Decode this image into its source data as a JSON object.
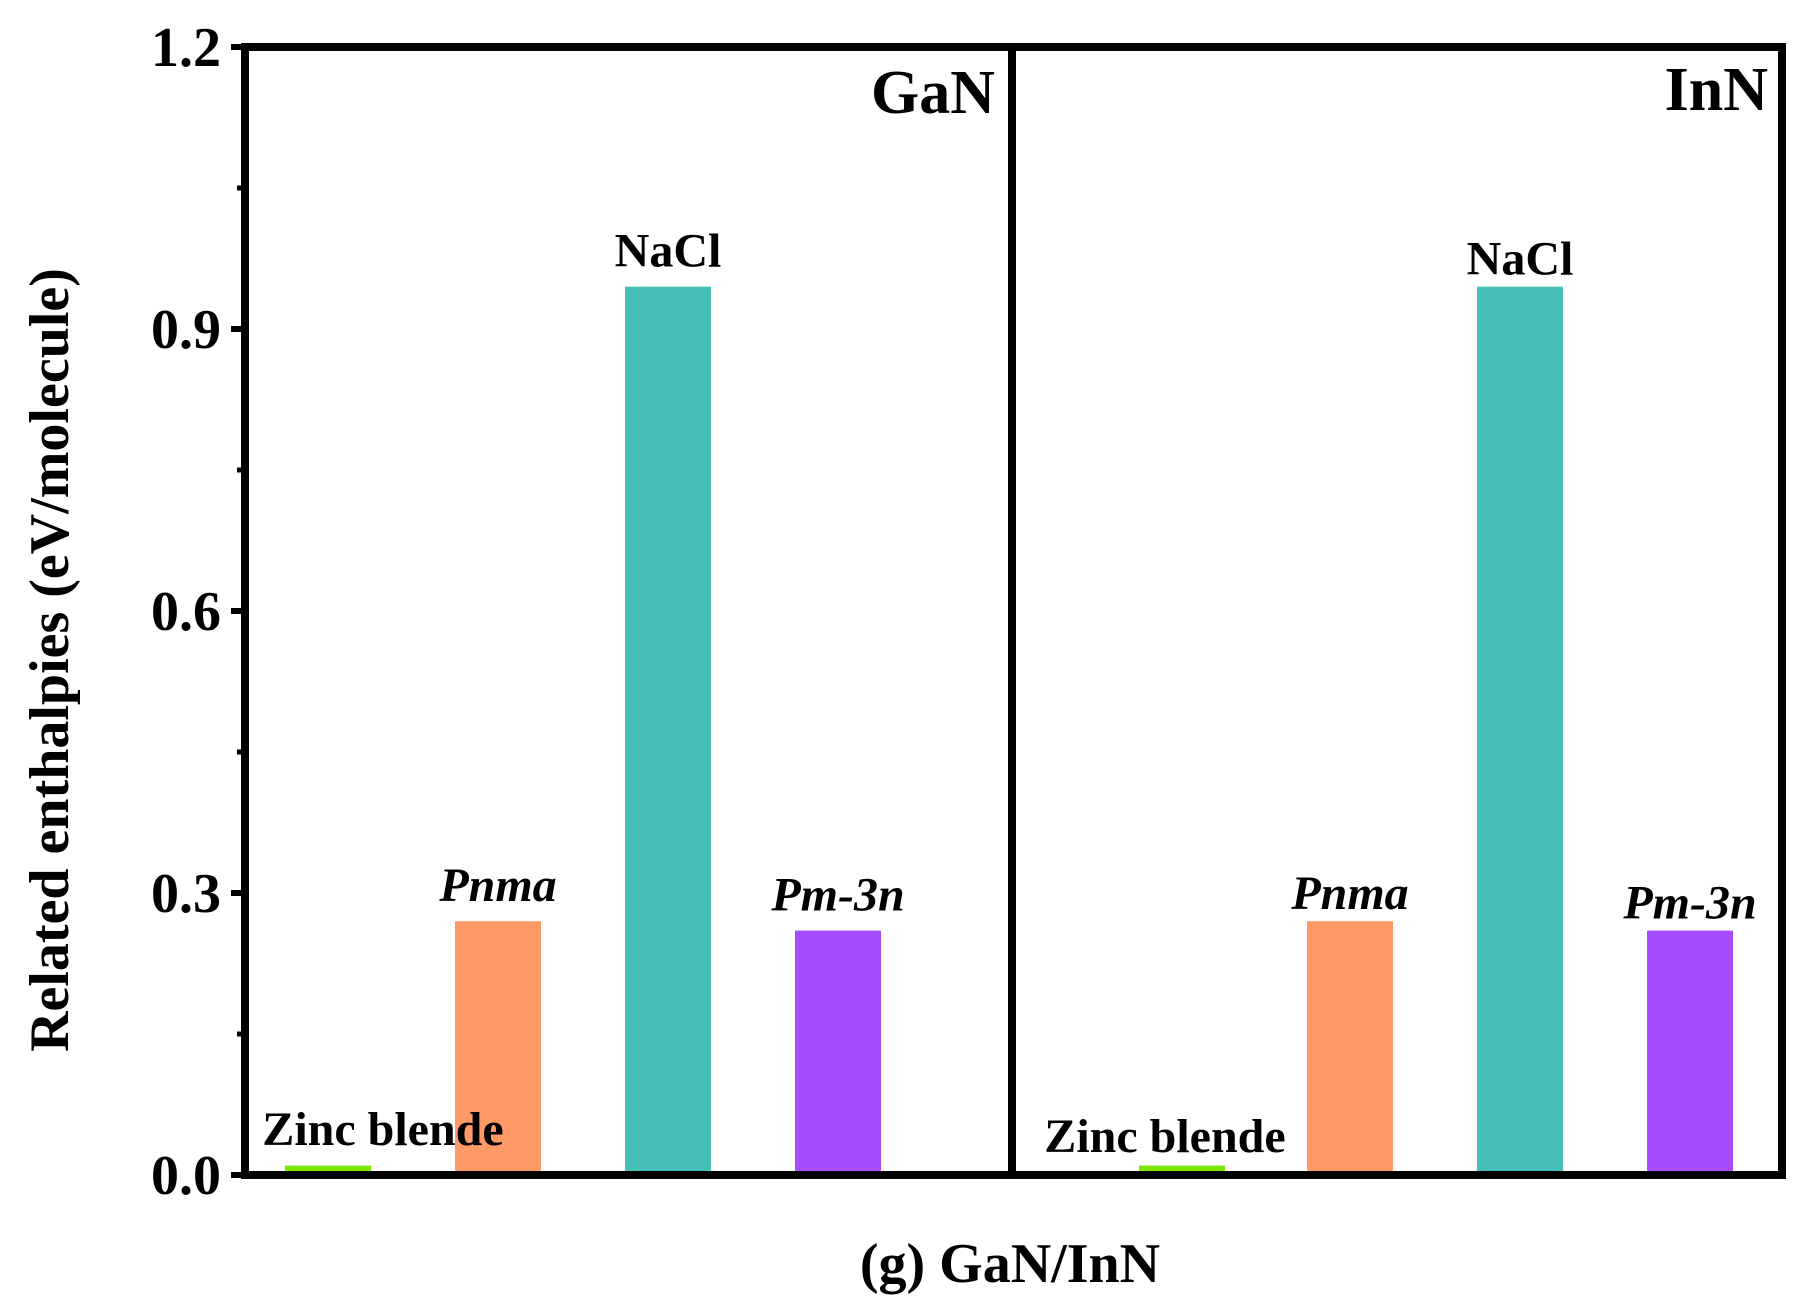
{
  "chart_data": {
    "type": "bar",
    "xlabel": "(g) GaN/InN",
    "ylabel": "Related enthalpies (eV/molecule)",
    "ylim": [
      0,
      1.2
    ],
    "yticks": [
      "0.0",
      "0.3",
      "0.6",
      "0.9",
      "1.2"
    ],
    "grid": false,
    "categories": [
      "Zinc blende",
      "Pnma",
      "NaCl",
      "Pm-3n"
    ],
    "colors": [
      "#7fe600",
      "#ff9966",
      "#45c0b8",
      "#a64dff"
    ],
    "italic_labels": [
      false,
      true,
      false,
      true
    ],
    "panels": [
      {
        "name": "GaN",
        "values": [
          0.01,
          0.27,
          0.945,
          0.26
        ]
      },
      {
        "name": "InN",
        "values": [
          0.01,
          0.27,
          0.945,
          0.26
        ]
      }
    ]
  }
}
